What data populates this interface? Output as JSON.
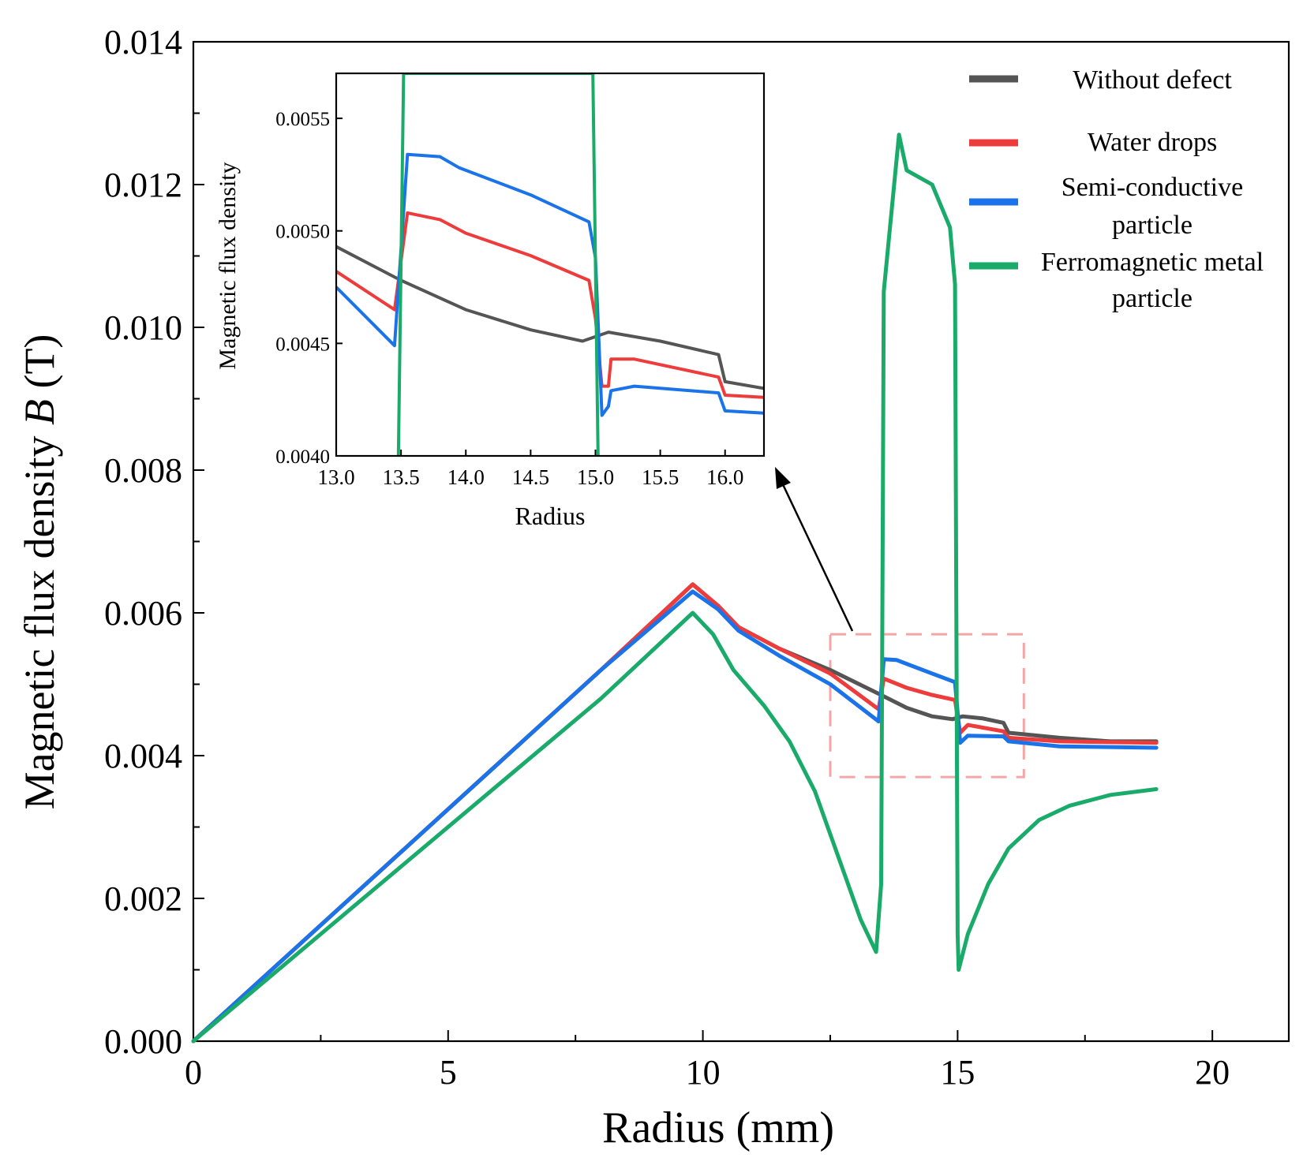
{
  "chart_data": [
    {
      "type": "line",
      "role": "main",
      "xlabel": "Radius (mm)",
      "ylabel": "Magnetic flux density B (T)",
      "ylabel_parts": {
        "before": "Magnetic flux density ",
        "italic": "B",
        "after": " (T)"
      },
      "xlim": [
        0,
        21.5
      ],
      "ylim": [
        0,
        0.014
      ],
      "xticks": [
        0,
        5,
        10,
        15,
        20
      ],
      "xtick_labels": [
        "0",
        "5",
        "10",
        "15",
        "20"
      ],
      "yticks": [
        0,
        0.002,
        0.004,
        0.006,
        0.008,
        0.01,
        0.012,
        0.014
      ],
      "ytick_labels": [
        "0.000",
        "0.002",
        "0.004",
        "0.006",
        "0.008",
        "0.010",
        "0.012",
        "0.014"
      ],
      "legend_position": "top-right",
      "highlight_box": {
        "x": [
          12.5,
          16.3
        ],
        "y": [
          0.0037,
          0.0057
        ],
        "color": "#f4a6a6"
      },
      "series": [
        {
          "name": "Without defect",
          "color": "#555555",
          "points": [
            [
              0,
              0
            ],
            [
              2,
              0.0013
            ],
            [
              4,
              0.0026
            ],
            [
              6,
              0.0039
            ],
            [
              8,
              0.0052
            ],
            [
              9.8,
              0.0064
            ],
            [
              10.3,
              0.0061
            ],
            [
              10.7,
              0.0058
            ],
            [
              11.5,
              0.0055
            ],
            [
              12.5,
              0.0052
            ],
            [
              13.5,
              0.00485
            ],
            [
              14,
              0.00467
            ],
            [
              14.5,
              0.00455
            ],
            [
              14.9,
              0.00451
            ],
            [
              15.1,
              0.00455
            ],
            [
              15.5,
              0.00452
            ],
            [
              15.9,
              0.00446
            ],
            [
              16,
              0.00432
            ],
            [
              17,
              0.00425
            ],
            [
              18,
              0.0042
            ],
            [
              18.9,
              0.0042
            ]
          ]
        },
        {
          "name": "Water drops",
          "color": "#ee3b3b",
          "points": [
            [
              0,
              0
            ],
            [
              2,
              0.0013
            ],
            [
              4,
              0.0026
            ],
            [
              6,
              0.0039
            ],
            [
              8,
              0.0052
            ],
            [
              9.8,
              0.0064
            ],
            [
              10.3,
              0.0061
            ],
            [
              10.7,
              0.0058
            ],
            [
              11.5,
              0.0055
            ],
            [
              12.5,
              0.00515
            ],
            [
              13.45,
              0.00465
            ],
            [
              13.55,
              0.00508
            ],
            [
              14,
              0.00495
            ],
            [
              14.5,
              0.00485
            ],
            [
              14.95,
              0.00478
            ],
            [
              15.05,
              0.00432
            ],
            [
              15.2,
              0.00443
            ],
            [
              15.9,
              0.00434
            ],
            [
              16,
              0.00425
            ],
            [
              17,
              0.0042
            ],
            [
              18.9,
              0.00418
            ]
          ]
        },
        {
          "name": "Semi-conductive particle",
          "color": "#1a73e8",
          "points": [
            [
              0,
              0
            ],
            [
              2,
              0.0013
            ],
            [
              4,
              0.0026
            ],
            [
              6,
              0.0039
            ],
            [
              8,
              0.0052
            ],
            [
              9.8,
              0.0063
            ],
            [
              10.3,
              0.00605
            ],
            [
              10.7,
              0.00575
            ],
            [
              11.5,
              0.0054
            ],
            [
              12.5,
              0.005
            ],
            [
              13.45,
              0.00448
            ],
            [
              13.55,
              0.00535
            ],
            [
              13.8,
              0.00534
            ],
            [
              14.5,
              0.00515
            ],
            [
              14.95,
              0.00503
            ],
            [
              15.05,
              0.00418
            ],
            [
              15.2,
              0.00428
            ],
            [
              15.9,
              0.00427
            ],
            [
              16,
              0.0042
            ],
            [
              17,
              0.00413
            ],
            [
              18.9,
              0.00411
            ]
          ]
        },
        {
          "name": "Ferromagnetic metal particle",
          "color": "#1aab6a",
          "points": [
            [
              0,
              0
            ],
            [
              2,
              0.0012
            ],
            [
              4,
              0.0024
            ],
            [
              6,
              0.0036
            ],
            [
              8,
              0.0048
            ],
            [
              9.8,
              0.006
            ],
            [
              10.2,
              0.0057
            ],
            [
              10.6,
              0.0052
            ],
            [
              11.2,
              0.0047
            ],
            [
              11.7,
              0.0042
            ],
            [
              12.2,
              0.0035
            ],
            [
              12.7,
              0.0025
            ],
            [
              13.1,
              0.0017
            ],
            [
              13.4,
              0.00125
            ],
            [
              13.5,
              0.0022
            ],
            [
              13.55,
              0.0105
            ],
            [
              13.85,
              0.0127
            ],
            [
              14,
              0.0122
            ],
            [
              14.5,
              0.012
            ],
            [
              14.85,
              0.0114
            ],
            [
              14.95,
              0.0106
            ],
            [
              15,
              0.0015
            ],
            [
              15.02,
              0.001
            ],
            [
              15.2,
              0.0015
            ],
            [
              15.6,
              0.0022
            ],
            [
              16,
              0.0027
            ],
            [
              16.6,
              0.0031
            ],
            [
              17.2,
              0.0033
            ],
            [
              18,
              0.00345
            ],
            [
              18.9,
              0.00353
            ]
          ]
        }
      ]
    },
    {
      "type": "line",
      "role": "inset",
      "xlabel": "Radius",
      "ylabel": "Magnetic flux density",
      "xlim": [
        13.0,
        16.3
      ],
      "ylim": [
        0.004,
        0.0057
      ],
      "xticks": [
        13.0,
        13.5,
        14.0,
        14.5,
        15.0,
        15.5,
        16.0
      ],
      "xtick_labels": [
        "13.0",
        "13.5",
        "14.0",
        "14.5",
        "15.0",
        "15.5",
        "16.0"
      ],
      "yticks": [
        0.004,
        0.0045,
        0.005,
        0.0055
      ],
      "ytick_labels": [
        "0.0040",
        "0.0045",
        "0.0050",
        "0.0055"
      ],
      "series": [
        {
          "name": "Without defect",
          "color": "#555555",
          "points": [
            [
              13.0,
              0.00493
            ],
            [
              13.5,
              0.00478
            ],
            [
              14.0,
              0.00465
            ],
            [
              14.5,
              0.00456
            ],
            [
              14.9,
              0.00451
            ],
            [
              15.1,
              0.00455
            ],
            [
              15.5,
              0.00451
            ],
            [
              15.95,
              0.00445
            ],
            [
              16.0,
              0.00433
            ],
            [
              16.3,
              0.0043
            ]
          ]
        },
        {
          "name": "Water drops",
          "color": "#ee3b3b",
          "points": [
            [
              13.0,
              0.00482
            ],
            [
              13.45,
              0.00465
            ],
            [
              13.55,
              0.00508
            ],
            [
              13.8,
              0.00505
            ],
            [
              14.0,
              0.00499
            ],
            [
              14.5,
              0.00489
            ],
            [
              14.95,
              0.00478
            ],
            [
              15.0,
              0.00461
            ],
            [
              15.05,
              0.00431
            ],
            [
              15.1,
              0.00431
            ],
            [
              15.12,
              0.00443
            ],
            [
              15.3,
              0.00443
            ],
            [
              15.95,
              0.00435
            ],
            [
              16.0,
              0.00427
            ],
            [
              16.3,
              0.00426
            ]
          ]
        },
        {
          "name": "Semi-conductive particle",
          "color": "#1a73e8",
          "points": [
            [
              13.0,
              0.00475
            ],
            [
              13.45,
              0.00449
            ],
            [
              13.55,
              0.00534
            ],
            [
              13.8,
              0.00533
            ],
            [
              13.95,
              0.00528
            ],
            [
              14.5,
              0.00516
            ],
            [
              14.95,
              0.00504
            ],
            [
              15.0,
              0.00488
            ],
            [
              15.05,
              0.00418
            ],
            [
              15.1,
              0.00422
            ],
            [
              15.12,
              0.00429
            ],
            [
              15.3,
              0.00431
            ],
            [
              15.95,
              0.00428
            ],
            [
              16.0,
              0.0042
            ],
            [
              16.3,
              0.00419
            ]
          ]
        },
        {
          "name": "Ferromagnetic metal particle",
          "color": "#1aab6a",
          "points": [
            [
              13.48,
              0.004
            ],
            [
              13.52,
              0.0057
            ],
            [
              14.98,
              0.0057
            ],
            [
              15.02,
              0.004
            ]
          ]
        }
      ]
    }
  ]
}
